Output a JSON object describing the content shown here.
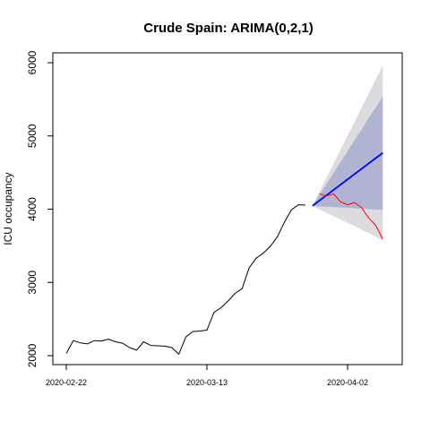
{
  "chart_data": {
    "type": "line",
    "title": "Crude Spain: ARIMA(0,2,1)",
    "xlabel": "",
    "ylabel": "ICU occupancy",
    "ylim": [
      2000,
      6000
    ],
    "y_ticks": [
      2000,
      3000,
      4000,
      5000,
      6000
    ],
    "x_ticks": [
      "2020-02-22",
      "2020-03-13",
      "2020-04-02"
    ],
    "grid": false,
    "legend": "none",
    "colors": {
      "observed": "#000000",
      "forecast": "#0000ff",
      "actual": "#ff0000",
      "band_80": "#b0b4d0",
      "band_95": "#dcdce0"
    },
    "series": [
      {
        "role": "observed",
        "x": [
          "2020-02-22",
          "2020-02-23",
          "2020-02-24",
          "2020-02-25",
          "2020-02-26",
          "2020-02-27",
          "2020-02-28",
          "2020-02-29",
          "2020-03-01",
          "2020-03-02",
          "2020-03-03",
          "2020-03-04",
          "2020-03-05",
          "2020-03-06",
          "2020-03-07",
          "2020-03-08",
          "2020-03-09",
          "2020-03-10",
          "2020-03-11",
          "2020-03-12",
          "2020-03-13",
          "2020-03-14",
          "2020-03-15",
          "2020-03-16",
          "2020-03-17",
          "2020-03-18",
          "2020-03-19",
          "2020-03-20",
          "2020-03-21",
          "2020-03-22",
          "2020-03-23",
          "2020-03-24",
          "2020-03-25",
          "2020-03-26",
          "2020-03-27"
        ],
        "values": [
          2030,
          2205,
          2175,
          2160,
          2205,
          2200,
          2225,
          2190,
          2170,
          2110,
          2075,
          2190,
          2140,
          2135,
          2130,
          2110,
          2020,
          2255,
          2330,
          2335,
          2350,
          2590,
          2655,
          2745,
          2850,
          2915,
          3200,
          3330,
          3400,
          3490,
          3620,
          3820,
          3990,
          4060,
          4055
        ]
      },
      {
        "role": "forecast",
        "x": [
          "2020-03-28",
          "2020-04-07"
        ],
        "values": [
          4045,
          4770
        ]
      },
      {
        "role": "actual",
        "x": [
          "2020-03-29",
          "2020-03-30",
          "2020-03-31",
          "2020-04-01",
          "2020-04-02",
          "2020-04-03",
          "2020-04-04",
          "2020-04-05",
          "2020-04-06",
          "2020-04-07"
        ],
        "values": [
          4210,
          4180,
          4210,
          4100,
          4060,
          4090,
          4020,
          3880,
          3780,
          3590
        ]
      }
    ],
    "intervals": [
      {
        "level": "95%",
        "x": [
          "2020-03-28",
          "2020-04-07"
        ],
        "upper": [
          4045,
          5960
        ],
        "lower": [
          4045,
          3580
        ]
      },
      {
        "level": "80%",
        "x": [
          "2020-03-28",
          "2020-04-07"
        ],
        "upper": [
          4045,
          5540
        ],
        "lower": [
          4045,
          3990
        ]
      }
    ]
  }
}
